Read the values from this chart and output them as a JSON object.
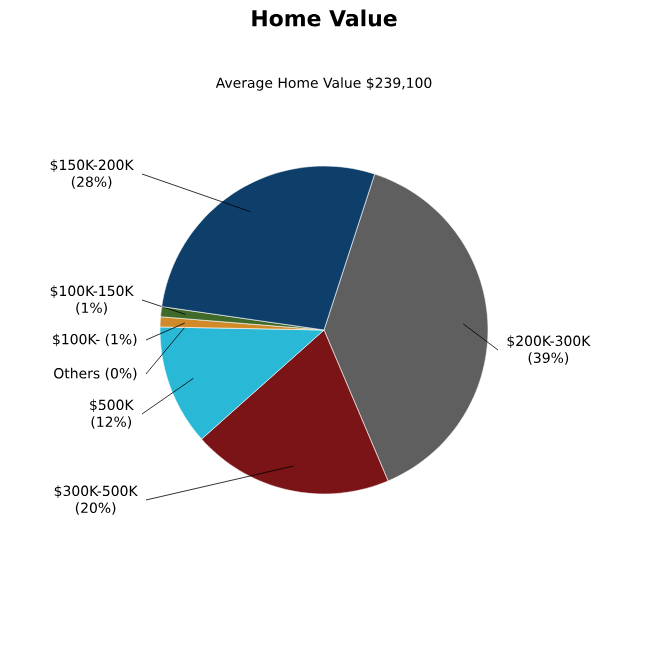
{
  "chart_data": {
    "type": "pie",
    "title": "Home Value",
    "subtitle": "Average Home Value  $239,100",
    "categories": [
      "$200K-300K",
      "$300K-500K",
      "$500K",
      "Others",
      "$100K-",
      "$100K-150K",
      "$150K-200K"
    ],
    "values": [
      39,
      20,
      12,
      0,
      1,
      1,
      28
    ],
    "value_labels": [
      "(39%)",
      "(20%)",
      "(12%)",
      "(0%)",
      "(1%)",
      "(1%)",
      "(28%)"
    ],
    "colors": [
      "#5f5f5f",
      "#7a1416",
      "#29b9d6",
      "#9a9a9a",
      "#d08a2a",
      "#3f6a2a",
      "#0e3f6b"
    ]
  }
}
